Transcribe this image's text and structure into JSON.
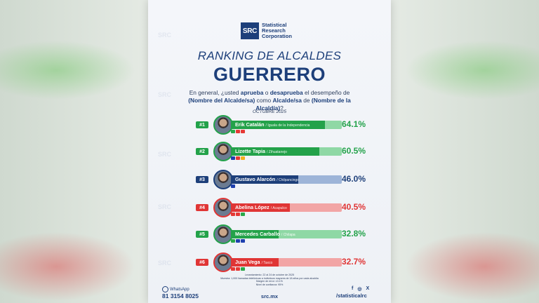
{
  "logo": {
    "mark": "SRC",
    "text": "Statistical\nResearch\nCorporation"
  },
  "title_line1": "RANKING DE ALCALDES",
  "title_line2": "GUERRERO",
  "question_html_parts": {
    "p1": "En general, ¿usted ",
    "approve": "aprueba",
    "p2": " o ",
    "disapprove": "desaprueba",
    "p3": " el desempeño de",
    "mayor": "(Nombre del Alcalde/sa)",
    "p4": " como ",
    "role": "Alcalde/sa",
    "p5": " de ",
    "muni": "(Nombre de la Alcaldía)",
    "p6": "?"
  },
  "month": "OCTUBRE 2025",
  "rows": [
    {
      "rank": "#1",
      "name": "Erik Catalán",
      "place": "/ Iguala de la Independencia",
      "pct": "64.1%",
      "value": 64.1,
      "theme": "green",
      "party": [
        "#2aa84a",
        "#e53935",
        "#e53935"
      ]
    },
    {
      "rank": "#2",
      "name": "Lizette Tapia",
      "place": "/ Zihuatanejo",
      "pct": "60.5%",
      "value": 60.5,
      "theme": "green",
      "party": [
        "#1e40af",
        "#e53935",
        "#f2b01e"
      ]
    },
    {
      "rank": "#3",
      "name": "Gustavo Alarcón",
      "place": "/ Chilpancingo",
      "pct": "46.0%",
      "value": 46.0,
      "theme": "blue",
      "party": [
        "#1e40af"
      ]
    },
    {
      "rank": "#4",
      "name": "Abelina López",
      "place": "/ Acapulco",
      "pct": "40.5%",
      "value": 40.5,
      "theme": "red",
      "party": [
        "#e53935",
        "#e53935",
        "#2aa84a"
      ]
    },
    {
      "rank": "#5",
      "name": "Mercedes Carballo",
      "place": "/ Chilapa",
      "pct": "32.8%",
      "value": 32.8,
      "theme": "green",
      "party": [
        "#2aa84a",
        "#1e40af",
        "#1e40af"
      ]
    },
    {
      "rank": "#6",
      "name": "Juan Vega",
      "place": "/ Taxco",
      "pct": "32.7%",
      "value": 32.7,
      "theme": "red",
      "party": [
        "#e53935",
        "#e53935",
        "#2aa84a"
      ]
    }
  ],
  "methodology": "Levantamiento: 22 al 24 de octubre de 2025\nMuestra: 1,000 llamadas telefónicas a individuos mayores de 18 años por cada alcaldía\nMargen de error: ±3.1%\nNivel de confianza: 95%",
  "footer": {
    "whatsapp_label": "WhatsApp",
    "whatsapp_number": "81 3154 8025",
    "site": "src.mx",
    "handle": "/statisticalrc"
  },
  "colors": {
    "green": "#23a24a",
    "green_light": "#8fd8a5",
    "blue": "#1d3f7a",
    "blue_light": "#9db4d8",
    "red": "#e03535",
    "red_light": "#f2a5a5"
  }
}
